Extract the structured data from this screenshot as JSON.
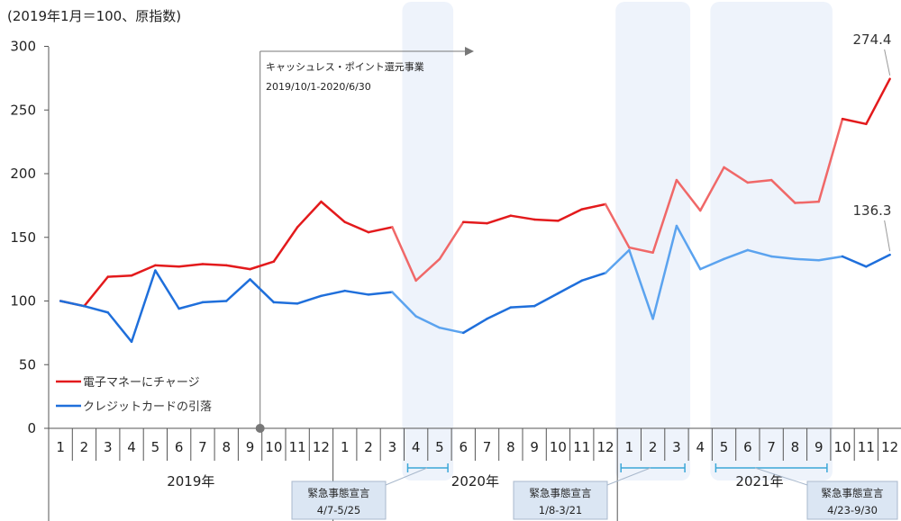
{
  "chart_data": {
    "type": "line",
    "unit_label": "(2019年1月＝100、原指数)",
    "ylim": [
      0,
      300
    ],
    "y_ticks": [
      "0",
      "50",
      "100",
      "150",
      "200",
      "250",
      "300"
    ],
    "categories": [
      "1",
      "2",
      "3",
      "4",
      "5",
      "6",
      "7",
      "8",
      "9",
      "10",
      "11",
      "12",
      "1",
      "2",
      "3",
      "4",
      "5",
      "6",
      "7",
      "8",
      "9",
      "10",
      "11",
      "12",
      "1",
      "2",
      "3",
      "4",
      "5",
      "6",
      "7",
      "8",
      "9",
      "10",
      "11",
      "12"
    ],
    "years": [
      "2019年",
      "2020年",
      "2021年"
    ],
    "series": [
      {
        "name": "電子マネーにチャージ",
        "color": "#e31a1c",
        "light_color": "#f06868",
        "values": [
          100,
          96,
          119,
          120,
          128,
          127,
          129,
          128,
          125,
          131,
          158,
          178,
          162,
          154,
          158,
          116,
          133,
          162,
          161,
          167,
          164,
          163,
          172,
          176,
          142,
          138,
          195,
          171,
          205,
          193,
          195,
          177,
          178,
          243,
          239,
          274.4
        ],
        "end_label": "274.4"
      },
      {
        "name": "クレジットカードの引落",
        "color": "#1f6fdb",
        "light_color": "#5ba3ef",
        "values": [
          100,
          96,
          91,
          68,
          124,
          94,
          99,
          100,
          117,
          99,
          98,
          104,
          108,
          105,
          107,
          88,
          79,
          75,
          86,
          95,
          96,
          106,
          116,
          122,
          140,
          86,
          159,
          125,
          133,
          140,
          135,
          133,
          132,
          135,
          127,
          136.3
        ],
        "end_label": "136.3"
      }
    ],
    "campaign": {
      "text1": "キャッシュレス・ポイント還元事業",
      "text2": "2019/10/1-2020/6/30"
    },
    "emergencies": [
      {
        "title": "緊急事態宣言",
        "period": "4/7-5/25"
      },
      {
        "title": "緊急事態宣言",
        "period": "1/8-3/21"
      },
      {
        "title": "緊急事態宣言",
        "period": "4/23-9/30"
      }
    ],
    "legend_position": "bottom-left",
    "grid": false
  }
}
